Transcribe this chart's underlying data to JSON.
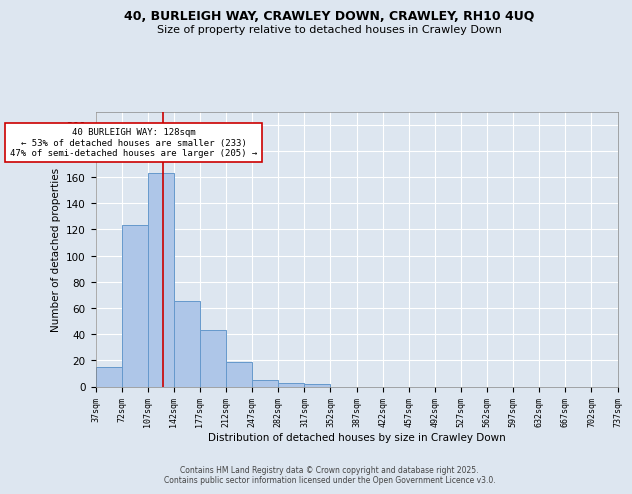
{
  "title_line1": "40, BURLEIGH WAY, CRAWLEY DOWN, CRAWLEY, RH10 4UQ",
  "title_line2": "Size of property relative to detached houses in Crawley Down",
  "xlabel": "Distribution of detached houses by size in Crawley Down",
  "ylabel": "Number of detached properties",
  "bin_edges": [
    37,
    72,
    107,
    142,
    177,
    212,
    247,
    282,
    317,
    352,
    387,
    422,
    457,
    492,
    527,
    562,
    597,
    632,
    667,
    702,
    737
  ],
  "bar_heights": [
    15,
    123,
    163,
    65,
    43,
    19,
    5,
    3,
    2,
    0,
    0,
    0,
    0,
    0,
    0,
    0,
    0,
    0,
    0,
    0
  ],
  "bar_color": "#aec6e8",
  "bar_edge_color": "#6699cc",
  "background_color": "#dde6f0",
  "grid_color": "#ffffff",
  "vline_x": 128,
  "vline_color": "#cc0000",
  "annotation_text": "40 BURLEIGH WAY: 128sqm\n← 53% of detached houses are smaller (233)\n47% of semi-detached houses are larger (205) →",
  "annotation_box_color": "#ffffff",
  "annotation_box_edge": "#cc0000",
  "footer_text": "Contains HM Land Registry data © Crown copyright and database right 2025.\nContains public sector information licensed under the Open Government Licence v3.0.",
  "ylim": [
    0,
    210
  ],
  "yticks": [
    0,
    20,
    40,
    60,
    80,
    100,
    120,
    140,
    160,
    180,
    200
  ],
  "tick_labels": [
    "37sqm",
    "72sqm",
    "107sqm",
    "142sqm",
    "177sqm",
    "212sqm",
    "247sqm",
    "282sqm",
    "317sqm",
    "352sqm",
    "387sqm",
    "422sqm",
    "457sqm",
    "492sqm",
    "527sqm",
    "562sqm",
    "597sqm",
    "632sqm",
    "667sqm",
    "702sqm",
    "737sqm"
  ]
}
